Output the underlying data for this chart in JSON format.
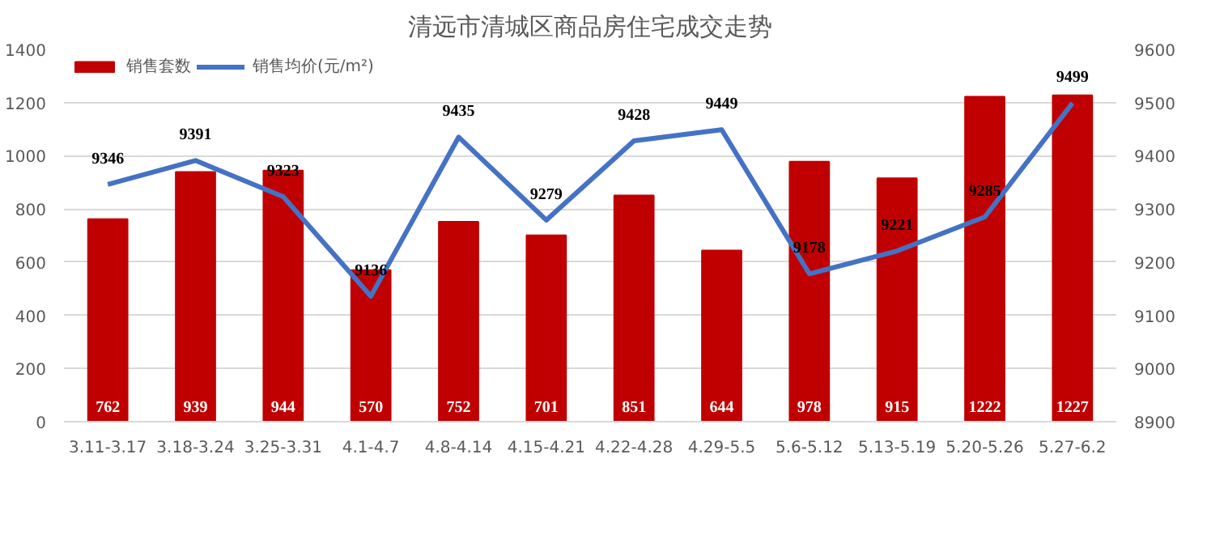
{
  "chart_data": {
    "type": "bar",
    "title": "清远市清城区商品房住宅成交走势",
    "categories": [
      "3.11-3.17",
      "3.18-3.24",
      "3.25-3.31",
      "4.1-4.7",
      "4.8-4.14",
      "4.15-4.21",
      "4.22-4.28",
      "4.29-5.5",
      "5.6-5.12",
      "5.13-5.19",
      "5.20-5.26",
      "5.27-6.2"
    ],
    "series": [
      {
        "name": "销售套数",
        "color": "#c00000",
        "values": [
          762,
          939,
          944,
          570,
          752,
          701,
          851,
          644,
          978,
          915,
          1222,
          1227
        ]
      },
      {
        "name": "销售均价(元/m²)",
        "type": "line",
        "axis": "y2",
        "color": "#4472c4",
        "values": [
          9346,
          9391,
          9323,
          9136,
          9435,
          9279,
          9428,
          9449,
          9178,
          9221,
          9285,
          9499
        ]
      }
    ],
    "ylim": [
      0,
      1400
    ],
    "yticks": [
      0,
      200,
      400,
      600,
      800,
      1000,
      1200,
      1400
    ],
    "y2lim": [
      8900,
      9600
    ],
    "y2ticks": [
      8900,
      9000,
      9100,
      9200,
      9300,
      9400,
      9500,
      9600
    ],
    "grid": "y",
    "legend": "top left",
    "data_labels": true,
    "marker": "none",
    "line_style": "solid"
  }
}
